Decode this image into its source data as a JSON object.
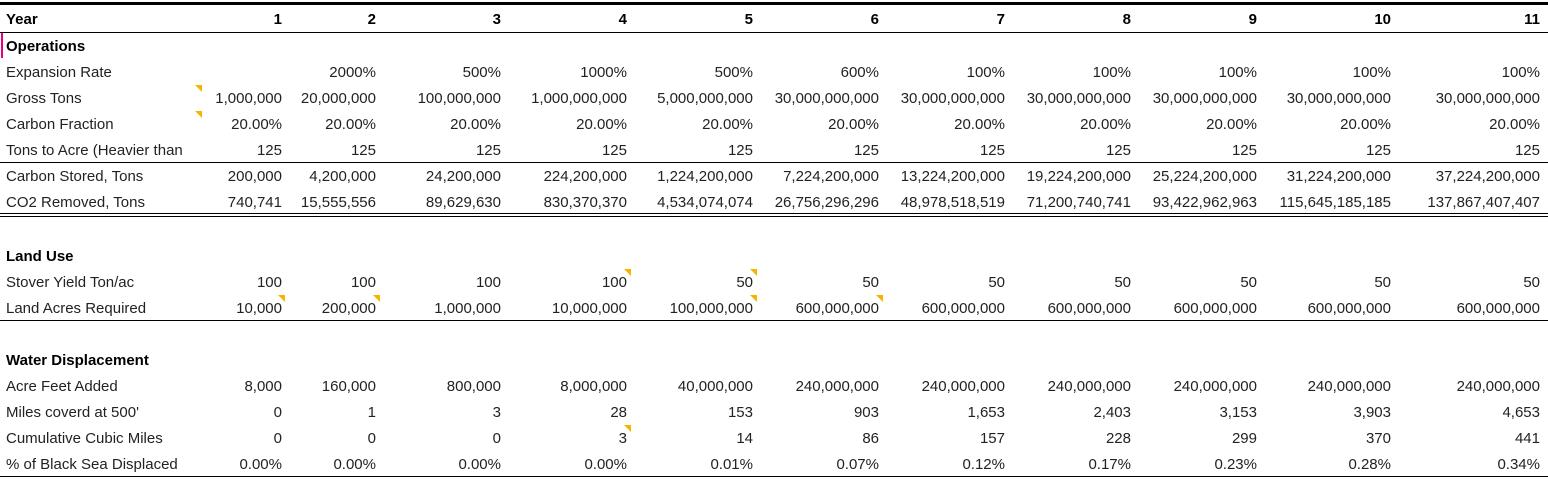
{
  "header": {
    "label": "Year",
    "years": [
      "1",
      "2",
      "3",
      "4",
      "5",
      "6",
      "7",
      "8",
      "9",
      "10",
      "11"
    ]
  },
  "sections": [
    {
      "id": "operations",
      "title": "Operations",
      "rows": [
        {
          "label": "Expansion Rate",
          "values": [
            "",
            "2000%",
            "500%",
            "1000%",
            "500%",
            "600%",
            "100%",
            "100%",
            "100%",
            "100%",
            "100%"
          ]
        },
        {
          "label": "Gross Tons",
          "values": [
            "1,000,000",
            "20,000,000",
            "100,000,000",
            "1,000,000,000",
            "5,000,000,000",
            "30,000,000,000",
            "30,000,000,000",
            "30,000,000,000",
            "30,000,000,000",
            "30,000,000,000",
            "30,000,000,000"
          ]
        },
        {
          "label": "Carbon Fraction",
          "values": [
            "20.00%",
            "20.00%",
            "20.00%",
            "20.00%",
            "20.00%",
            "20.00%",
            "20.00%",
            "20.00%",
            "20.00%",
            "20.00%",
            "20.00%"
          ]
        },
        {
          "label": "Tons to Acre (Heavier than",
          "values": [
            "125",
            "125",
            "125",
            "125",
            "125",
            "125",
            "125",
            "125",
            "125",
            "125",
            "125"
          ]
        },
        {
          "label": "Carbon Stored, Tons",
          "values": [
            "200,000",
            "4,200,000",
            "24,200,000",
            "224,200,000",
            "1,224,200,000",
            "7,224,200,000",
            "13,224,200,000",
            "19,224,200,000",
            "25,224,200,000",
            "31,224,200,000",
            "37,224,200,000"
          ]
        },
        {
          "label": "CO2 Removed, Tons",
          "values": [
            "740,741",
            "15,555,556",
            "89,629,630",
            "830,370,370",
            "4,534,074,074",
            "26,756,296,296",
            "48,978,518,519",
            "71,200,740,741",
            "93,422,962,963",
            "115,645,185,185",
            "137,867,407,407"
          ]
        }
      ]
    },
    {
      "id": "land",
      "title": "Land Use",
      "rows": [
        {
          "label": "Stover Yield Ton/ac",
          "values": [
            "100",
            "100",
            "100",
            "100",
            "50",
            "50",
            "50",
            "50",
            "50",
            "50",
            "50"
          ]
        },
        {
          "label": "Land Acres Required",
          "values": [
            "10,000",
            "200,000",
            "1,000,000",
            "10,000,000",
            "100,000,000",
            "600,000,000",
            "600,000,000",
            "600,000,000",
            "600,000,000",
            "600,000,000",
            "600,000,000"
          ]
        }
      ]
    },
    {
      "id": "water",
      "title": "Water Displacement",
      "rows": [
        {
          "label": "Acre Feet Added",
          "values": [
            "8,000",
            "160,000",
            "800,000",
            "8,000,000",
            "40,000,000",
            "240,000,000",
            "240,000,000",
            "240,000,000",
            "240,000,000",
            "240,000,000",
            "240,000,000"
          ]
        },
        {
          "label": "Miles coverd at 500'",
          "values": [
            "0",
            "1",
            "3",
            "28",
            "153",
            "903",
            "1,653",
            "2,403",
            "3,153",
            "3,903",
            "4,653"
          ]
        },
        {
          "label": "Cumulative Cubic Miles",
          "values": [
            "0",
            "0",
            "0",
            "3",
            "14",
            "86",
            "157",
            "228",
            "299",
            "370",
            "441"
          ]
        },
        {
          "label": "% of Black Sea Displaced",
          "values": [
            "0.00%",
            "0.00%",
            "0.00%",
            "0.00%",
            "0.01%",
            "0.07%",
            "0.12%",
            "0.17%",
            "0.23%",
            "0.28%",
            "0.34%"
          ]
        }
      ]
    }
  ],
  "colors": {
    "comment_marker": "#f5b400",
    "selection_marker": "#e6007e",
    "grid_line": "#000000"
  }
}
